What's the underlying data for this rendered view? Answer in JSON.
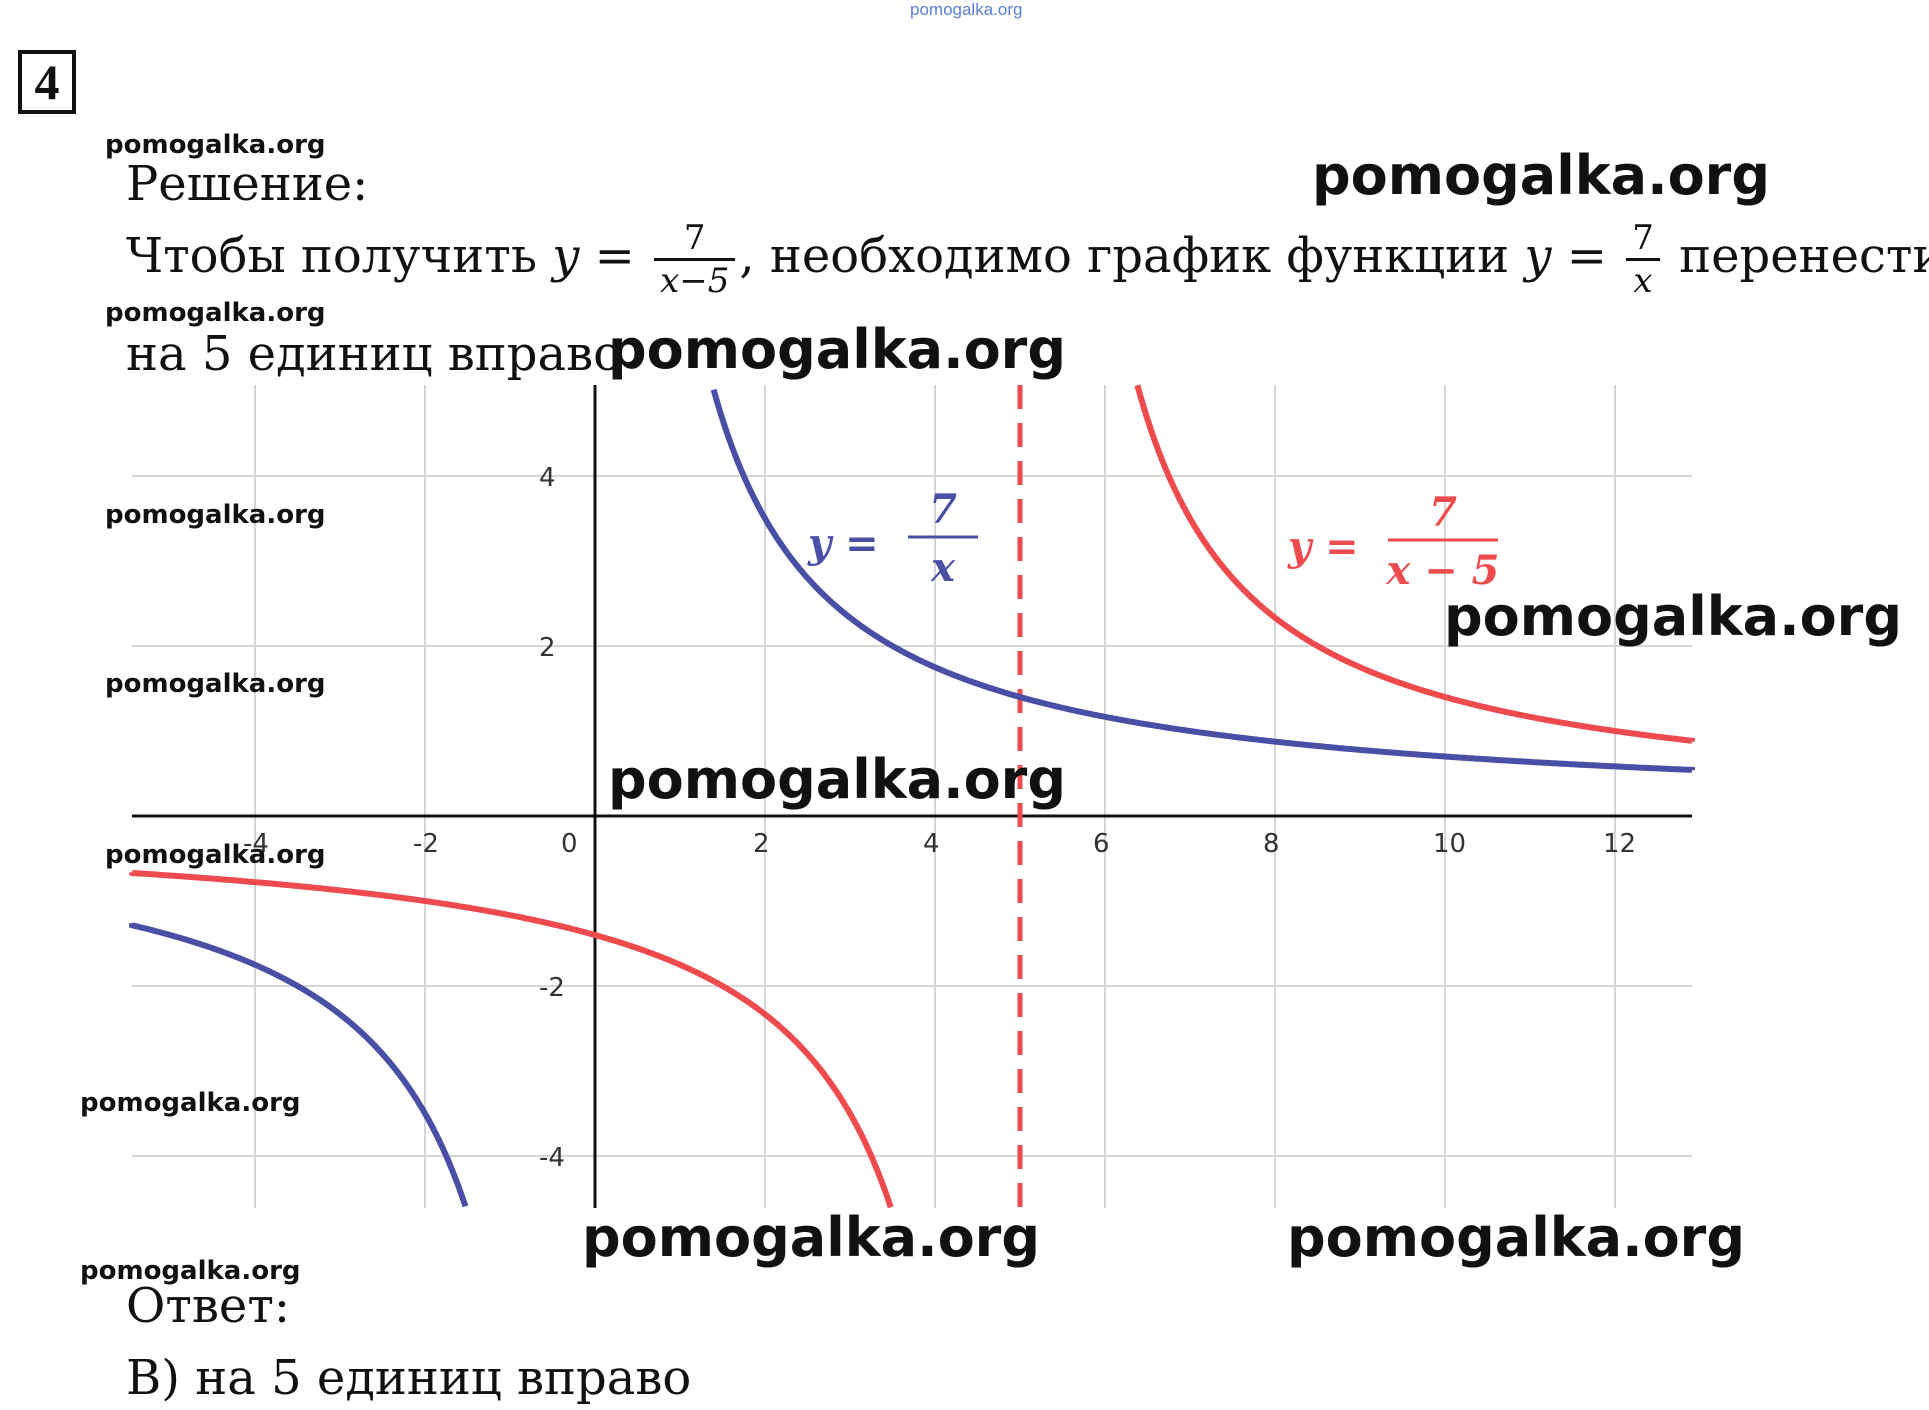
{
  "header": {
    "site_small": "pomogalka.org",
    "problem_number": "4"
  },
  "watermark": "pomogalka.org",
  "solution": {
    "heading": "Решение:",
    "text_before": "Чтобы получить",
    "eq_lhs": "y =",
    "frac1_num": "7",
    "frac1_den": "x−5",
    "text_middle": ", необходимо график функции",
    "eq2_lhs": "y =",
    "frac2_num": "7",
    "frac2_den": "x",
    "text_after": "перенести",
    "line2": "на 5 единиц вправо"
  },
  "answer": {
    "heading": "Ответ:",
    "text": "В) на 5 единиц вправо"
  },
  "chart_data": {
    "type": "line",
    "title": "",
    "xlabel": "",
    "ylabel": "",
    "xlim": [
      -5.5,
      13
    ],
    "ylim": [
      -4.6,
      5.1
    ],
    "x_ticks": [
      -4,
      -2,
      0,
      2,
      4,
      6,
      8,
      10,
      12
    ],
    "x_tick_labels": [
      "-4",
      "-2",
      "0",
      "2",
      "4",
      "6",
      "8",
      "10",
      "12"
    ],
    "y_ticks": [
      -4,
      -2,
      2,
      4
    ],
    "y_tick_labels": [
      "-4",
      "-2",
      "2",
      "4"
    ],
    "grid": true,
    "series": [
      {
        "name": "y = 7/x",
        "formula": "7/x",
        "shift": 0,
        "color": "#4a4fa6",
        "label_lhs": "y =",
        "label_num": "7",
        "label_den": "x"
      },
      {
        "name": "y = 7/(x − 5)",
        "formula": "7/(x-5)",
        "shift": 5,
        "color": "#ee4b4f",
        "label_lhs": "y =",
        "label_num": "7",
        "label_den": "x − 5"
      }
    ],
    "asymptote": {
      "x": 5,
      "style": "dashed",
      "color": "#ee4b4f"
    }
  }
}
